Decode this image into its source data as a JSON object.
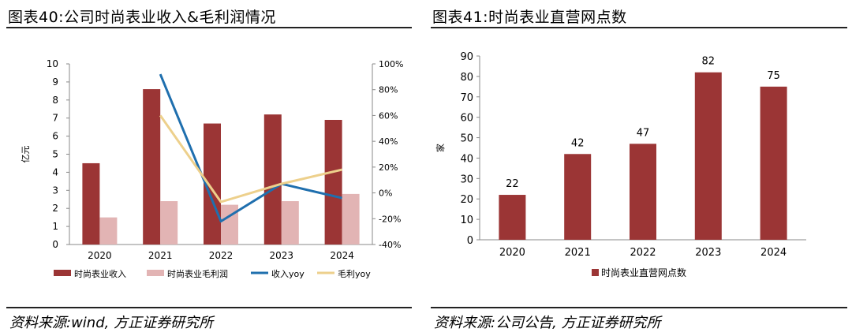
{
  "colors": {
    "revenue": "#9B3535",
    "gross_profit": "#E2B4B4",
    "revenue_yoy": "#1F6FAE",
    "gross_profit_yoy": "#EDD08C",
    "stores": "#9B3535"
  },
  "left": {
    "title": "图表40:公司时尚表业收入&毛利润情况",
    "source": "资料来源:wind, 方正证券研究所"
  },
  "right": {
    "title": "图表41:时尚表业直营网点数",
    "source": "资料来源:公司公告, 方正证券研究所"
  },
  "chart_data": [
    {
      "type": "bar",
      "title": "",
      "categories": [
        "2020",
        "2021",
        "2022",
        "2023",
        "2024"
      ],
      "ylabel": "亿元",
      "ylim": [
        0,
        10
      ],
      "yticks": [
        "0",
        "1",
        "2",
        "3",
        "4",
        "5",
        "6",
        "7",
        "8",
        "9",
        "10"
      ],
      "y2lim": [
        -40,
        100
      ],
      "y2ticks": [
        "-40%",
        "-20%",
        "0%",
        "20%",
        "40%",
        "60%",
        "80%",
        "100%"
      ],
      "series": [
        {
          "name": "时尚表业收入",
          "type": "bar",
          "axis": "left",
          "values": [
            4.5,
            8.6,
            6.7,
            7.2,
            6.9
          ]
        },
        {
          "name": "时尚表业毛利润",
          "type": "bar",
          "axis": "left",
          "values": [
            1.5,
            2.4,
            2.2,
            2.4,
            2.8
          ]
        },
        {
          "name": "收入yoy",
          "type": "line",
          "axis": "right",
          "values": [
            null,
            92,
            -22,
            7,
            -4
          ]
        },
        {
          "name": "毛利yoy",
          "type": "line",
          "axis": "right",
          "values": [
            null,
            60,
            -7,
            7,
            18
          ]
        }
      ],
      "legend": "bottom",
      "grid": false
    },
    {
      "type": "bar",
      "title": "",
      "categories": [
        "2020",
        "2021",
        "2022",
        "2023",
        "2024"
      ],
      "ylabel": "家",
      "ylim": [
        0,
        90
      ],
      "yticks": [
        "0",
        "10",
        "20",
        "30",
        "40",
        "50",
        "60",
        "70",
        "80",
        "90"
      ],
      "series": [
        {
          "name": "时尚表业直营网点数",
          "values": [
            22,
            42,
            47,
            82,
            75
          ],
          "labels": [
            "22",
            "42",
            "47",
            "82",
            "75"
          ]
        }
      ],
      "legend": "bottom",
      "grid": false
    }
  ]
}
